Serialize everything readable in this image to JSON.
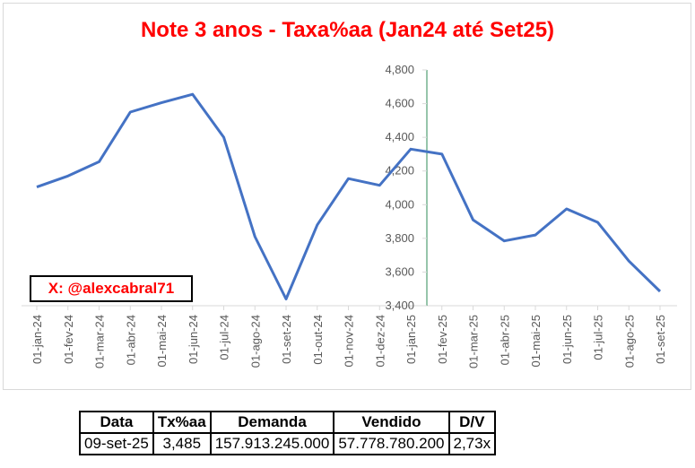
{
  "chart_data": {
    "type": "line",
    "title": "Note 3 anos - Taxa%aa (Jan24 até Set25)",
    "xlabel": "",
    "ylabel": "",
    "categories": [
      "01-jan-24",
      "01-fev-24",
      "01-mar-24",
      "01-abr-24",
      "01-mai-24",
      "01-jun-24",
      "01-jul-24",
      "01-ago-24",
      "01-set-24",
      "01-out-24",
      "01-nov-24",
      "01-dez-24",
      "01-jan-25",
      "01-fev-25",
      "01-mar-25",
      "01-abr-25",
      "01-mai-25",
      "01-jun-25",
      "01-jul-25",
      "01-ago-25",
      "01-set-25"
    ],
    "series": [
      {
        "values": [
          4.105,
          4.17,
          4.255,
          4.55,
          4.605,
          4.655,
          4.4,
          3.81,
          3.44,
          3.88,
          4.155,
          4.115,
          4.33,
          4.3,
          3.91,
          3.785,
          3.82,
          3.975,
          3.895,
          3.665,
          3.485
        ],
        "color": "#4472c4"
      }
    ],
    "ylim": [
      3.4,
      4.8
    ],
    "yticks": [
      "3,400",
      "3,600",
      "3,800",
      "4,000",
      "4,200",
      "4,400",
      "4,600",
      "4,800"
    ],
    "grid": false
  },
  "watermark": {
    "text": "X: @alexcabral71"
  },
  "summary_table": {
    "headers": [
      "Data",
      "Tx%aa",
      "Demanda",
      "Vendido",
      "D/V"
    ],
    "row": [
      "09-set-25",
      "3,485",
      "157.913.245.000",
      "57.778.780.200",
      "2,73x"
    ]
  },
  "colors": {
    "title": "#ff0000",
    "line": "#4472c4",
    "axis": "#d9d9d9",
    "yaxis": "#2e8b57"
  }
}
